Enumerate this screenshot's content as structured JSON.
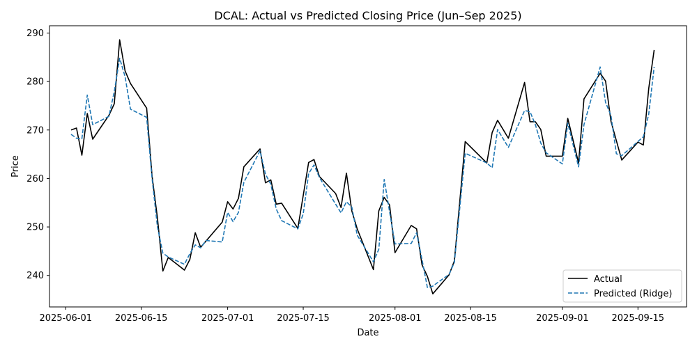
{
  "chart_data": {
    "type": "line",
    "title": "DCAL: Actual vs Predicted Closing Price (Jun–Sep 2025)",
    "xlabel": "Date",
    "ylabel": "Price",
    "x_range": [
      "2025-05-29",
      "2025-09-24"
    ],
    "ylim": [
      233.5,
      291.5
    ],
    "x_ticks": [
      "2025-06-01",
      "2025-06-15",
      "2025-07-01",
      "2025-07-15",
      "2025-08-01",
      "2025-08-15",
      "2025-09-01",
      "2025-09-15"
    ],
    "y_ticks": [
      240,
      250,
      260,
      270,
      280,
      290
    ],
    "grid": false,
    "legend_position": "bottom-right",
    "series": [
      {
        "name": "Actual",
        "color": "#000000",
        "style": "solid",
        "points": [
          [
            "2025-06-02",
            270.0
          ],
          [
            "2025-06-03",
            270.4
          ],
          [
            "2025-06-04",
            264.8
          ],
          [
            "2025-06-05",
            273.4
          ],
          [
            "2025-06-06",
            268.1
          ],
          [
            "2025-06-09",
            273.0
          ],
          [
            "2025-06-10",
            275.4
          ],
          [
            "2025-06-11",
            288.6
          ],
          [
            "2025-06-12",
            282.2
          ],
          [
            "2025-06-13",
            279.6
          ],
          [
            "2025-06-16",
            274.5
          ],
          [
            "2025-06-17",
            260.5
          ],
          [
            "2025-06-18",
            251.8
          ],
          [
            "2025-06-19",
            240.9
          ],
          [
            "2025-06-20",
            243.7
          ],
          [
            "2025-06-23",
            241.1
          ],
          [
            "2025-06-24",
            243.3
          ],
          [
            "2025-06-25",
            248.8
          ],
          [
            "2025-06-26",
            245.8
          ],
          [
            "2025-06-30",
            251.0
          ],
          [
            "2025-07-01",
            255.2
          ],
          [
            "2025-07-02",
            253.7
          ],
          [
            "2025-07-03",
            255.9
          ],
          [
            "2025-07-04",
            262.4
          ],
          [
            "2025-07-07",
            266.1
          ],
          [
            "2025-07-08",
            259.1
          ],
          [
            "2025-07-09",
            259.7
          ],
          [
            "2025-07-10",
            254.7
          ],
          [
            "2025-07-11",
            254.9
          ],
          [
            "2025-07-14",
            249.7
          ],
          [
            "2025-07-16",
            263.3
          ],
          [
            "2025-07-17",
            263.9
          ],
          [
            "2025-07-18",
            260.4
          ],
          [
            "2025-07-21",
            256.9
          ],
          [
            "2025-07-22",
            254.0
          ],
          [
            "2025-07-23",
            261.1
          ],
          [
            "2025-07-24",
            253.3
          ],
          [
            "2025-07-25",
            249.6
          ],
          [
            "2025-07-28",
            241.2
          ],
          [
            "2025-07-29",
            253.3
          ],
          [
            "2025-07-30",
            256.1
          ],
          [
            "2025-07-31",
            254.5
          ],
          [
            "2025-08-01",
            244.7
          ],
          [
            "2025-08-04",
            250.3
          ],
          [
            "2025-08-05",
            249.6
          ],
          [
            "2025-08-06",
            242.2
          ],
          [
            "2025-08-07",
            239.8
          ],
          [
            "2025-08-08",
            236.2
          ],
          [
            "2025-08-11",
            240.1
          ],
          [
            "2025-08-12",
            243.0
          ],
          [
            "2025-08-14",
            267.6
          ],
          [
            "2025-08-18",
            263.2
          ],
          [
            "2025-08-19",
            269.5
          ],
          [
            "2025-08-20",
            272.0
          ],
          [
            "2025-08-22",
            268.3
          ],
          [
            "2025-08-25",
            279.8
          ],
          [
            "2025-08-26",
            271.7
          ],
          [
            "2025-08-27",
            271.7
          ],
          [
            "2025-08-28",
            270.1
          ],
          [
            "2025-08-29",
            264.6
          ],
          [
            "2025-09-01",
            264.6
          ],
          [
            "2025-09-02",
            272.4
          ],
          [
            "2025-09-04",
            263.2
          ],
          [
            "2025-09-05",
            276.4
          ],
          [
            "2025-09-08",
            281.7
          ],
          [
            "2025-09-09",
            280.1
          ],
          [
            "2025-09-10",
            271.8
          ],
          [
            "2025-09-12",
            263.8
          ],
          [
            "2025-09-15",
            267.5
          ],
          [
            "2025-09-16",
            266.9
          ],
          [
            "2025-09-17",
            278.6
          ],
          [
            "2025-09-18",
            286.5
          ]
        ]
      },
      {
        "name": "Predicted (Ridge)",
        "color": "#1f77b4",
        "style": "dashed",
        "points": [
          [
            "2025-06-02",
            269.1
          ],
          [
            "2025-06-03",
            268.3
          ],
          [
            "2025-06-04",
            268.2
          ],
          [
            "2025-06-05",
            277.2
          ],
          [
            "2025-06-06",
            271.1
          ],
          [
            "2025-06-09",
            272.8
          ],
          [
            "2025-06-10",
            277.9
          ],
          [
            "2025-06-11",
            284.8
          ],
          [
            "2025-06-12",
            281.0
          ],
          [
            "2025-06-13",
            274.3
          ],
          [
            "2025-06-16",
            272.6
          ],
          [
            "2025-06-17",
            260.0
          ],
          [
            "2025-06-18",
            250.0
          ],
          [
            "2025-06-19",
            244.6
          ],
          [
            "2025-06-20",
            243.8
          ],
          [
            "2025-06-23",
            242.3
          ],
          [
            "2025-06-24",
            244.5
          ],
          [
            "2025-06-25",
            246.3
          ],
          [
            "2025-06-26",
            245.7
          ],
          [
            "2025-06-27",
            247.2
          ],
          [
            "2025-06-30",
            246.9
          ],
          [
            "2025-07-01",
            253.0
          ],
          [
            "2025-07-02",
            251.1
          ],
          [
            "2025-07-03",
            253.0
          ],
          [
            "2025-07-04",
            259.2
          ],
          [
            "2025-07-07",
            265.7
          ],
          [
            "2025-07-08",
            260.9
          ],
          [
            "2025-07-09",
            258.8
          ],
          [
            "2025-07-10",
            253.7
          ],
          [
            "2025-07-11",
            251.3
          ],
          [
            "2025-07-14",
            249.6
          ],
          [
            "2025-07-15",
            252.7
          ],
          [
            "2025-07-16",
            261.0
          ],
          [
            "2025-07-17",
            262.8
          ],
          [
            "2025-07-18",
            260.2
          ],
          [
            "2025-07-21",
            254.7
          ],
          [
            "2025-07-22",
            252.9
          ],
          [
            "2025-07-23",
            255.2
          ],
          [
            "2025-07-24",
            254.1
          ],
          [
            "2025-07-25",
            248.3
          ],
          [
            "2025-07-28",
            242.8
          ],
          [
            "2025-07-29",
            245.4
          ],
          [
            "2025-07-30",
            259.8
          ],
          [
            "2025-07-31",
            253.1
          ],
          [
            "2025-08-01",
            246.5
          ],
          [
            "2025-08-04",
            246.6
          ],
          [
            "2025-08-05",
            248.8
          ],
          [
            "2025-08-06",
            243.3
          ],
          [
            "2025-08-07",
            237.5
          ],
          [
            "2025-08-08",
            237.8
          ],
          [
            "2025-08-11",
            240.2
          ],
          [
            "2025-08-12",
            242.7
          ],
          [
            "2025-08-14",
            265.2
          ],
          [
            "2025-08-18",
            263.2
          ],
          [
            "2025-08-19",
            262.2
          ],
          [
            "2025-08-20",
            270.1
          ],
          [
            "2025-08-22",
            266.4
          ],
          [
            "2025-08-25",
            274.0
          ],
          [
            "2025-08-26",
            273.8
          ],
          [
            "2025-08-27",
            271.1
          ],
          [
            "2025-08-28",
            267.3
          ],
          [
            "2025-08-29",
            265.3
          ],
          [
            "2025-09-01",
            263.0
          ],
          [
            "2025-09-02",
            271.4
          ],
          [
            "2025-09-04",
            262.4
          ],
          [
            "2025-09-05",
            271.1
          ],
          [
            "2025-09-08",
            283.0
          ],
          [
            "2025-09-09",
            275.7
          ],
          [
            "2025-09-10",
            273.0
          ],
          [
            "2025-09-11",
            265.1
          ],
          [
            "2025-09-12",
            264.7
          ],
          [
            "2025-09-16",
            268.6
          ],
          [
            "2025-09-17",
            273.3
          ],
          [
            "2025-09-18",
            283.0
          ]
        ]
      }
    ]
  }
}
